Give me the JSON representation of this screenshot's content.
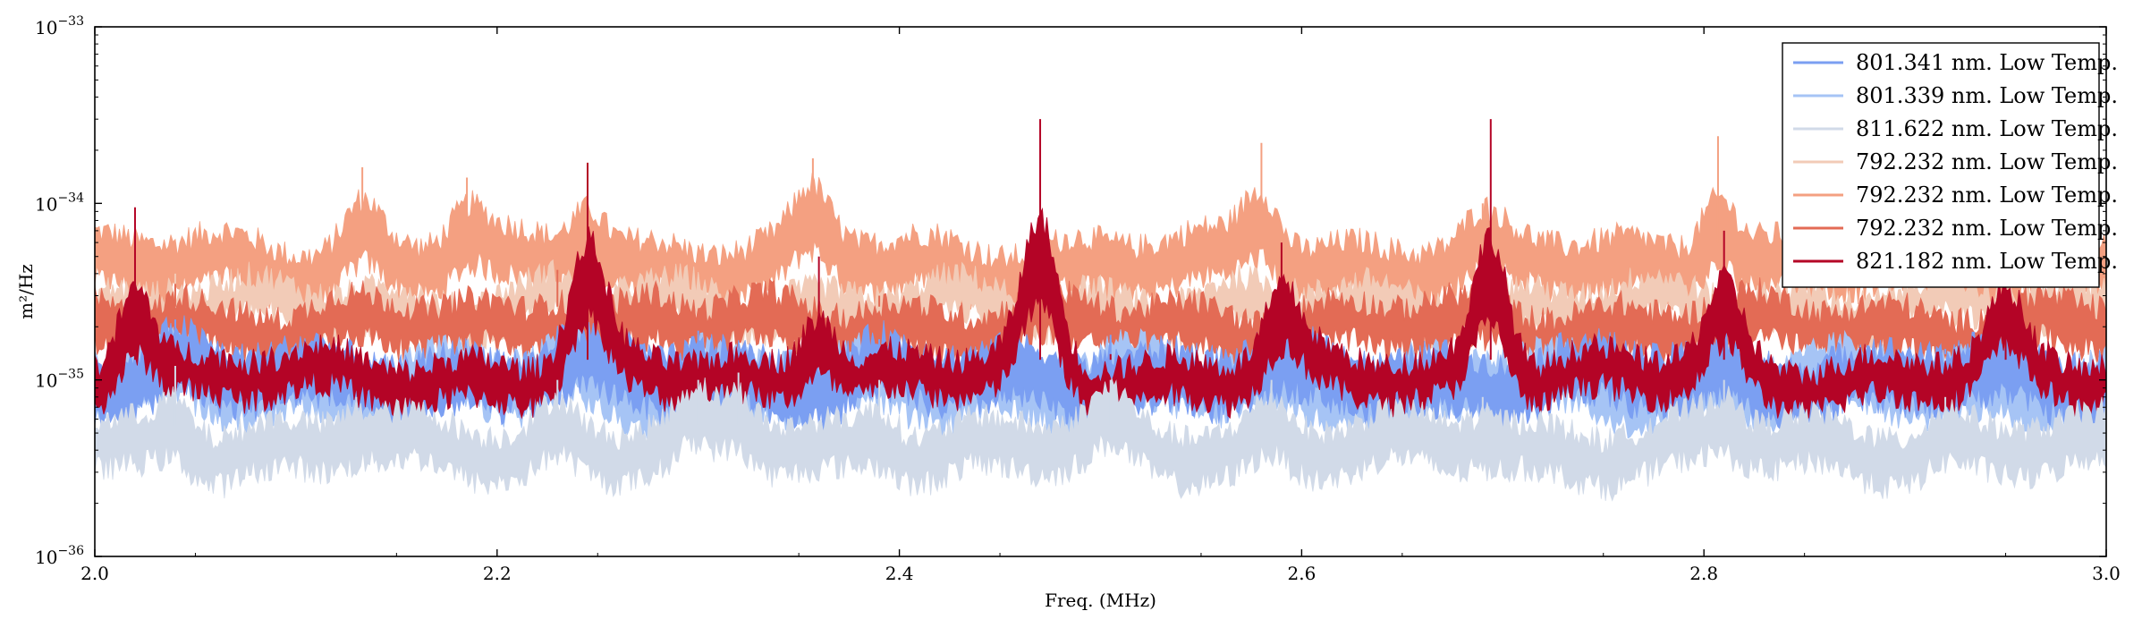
{
  "chart_data": {
    "type": "line",
    "title": "",
    "xlabel": "Freq. (MHz)",
    "ylabel": "m²/Hz",
    "xlim": [
      2.0,
      3.0
    ],
    "ylim": [
      1e-36,
      1e-33
    ],
    "yscale": "log",
    "x_ticks": [
      2.0,
      2.2,
      2.4,
      2.6,
      2.8,
      3.0
    ],
    "x_tick_labels": [
      "2.0",
      "2.2",
      "2.4",
      "2.6",
      "2.8",
      "3.0"
    ],
    "y_ticks": [
      1e-36,
      1e-35,
      1e-34,
      1e-33
    ],
    "y_tick_labels": [
      {
        "base": "10",
        "exp": "−36"
      },
      {
        "base": "10",
        "exp": "−35"
      },
      {
        "base": "10",
        "exp": "−34"
      },
      {
        "base": "10",
        "exp": "−33"
      }
    ],
    "grid": false,
    "legend_position": "top-right",
    "series": [
      {
        "name": "801.341 nm. Low Temp.",
        "color": "#7b9ff2",
        "band_low": 7e-36,
        "band_high": 1.4e-35,
        "peaks": [
          [
            2.04,
            2.2e-35
          ],
          [
            2.235,
            2e-35
          ],
          [
            2.3,
            1.9e-35
          ],
          [
            2.39,
            1.7e-35
          ],
          [
            2.505,
            1.8e-35
          ],
          [
            2.585,
            1.7e-35
          ],
          [
            2.81,
            1.6e-35
          ],
          [
            2.92,
            1.5e-35
          ]
        ]
      },
      {
        "name": "801.339 nm. Low Temp.",
        "color": "#a6c4f5",
        "band_low": 6.5e-36,
        "band_high": 1.3e-35,
        "peaks": [
          [
            2.04,
            2e-35
          ],
          [
            2.235,
            1.9e-35
          ],
          [
            2.3,
            1.8e-35
          ],
          [
            2.505,
            1.7e-35
          ]
        ]
      },
      {
        "name": "811.622 nm. Low Temp.",
        "color": "#d1dae8",
        "band_low": 3e-36,
        "band_high": 5.5e-36,
        "peaks": [
          [
            2.04,
            1.2e-35
          ],
          [
            2.13,
            8e-36
          ],
          [
            2.23,
            1e-35
          ],
          [
            2.3,
            1e-35
          ],
          [
            2.32,
            1.1e-35
          ],
          [
            2.39,
            1e-35
          ],
          [
            2.505,
            1e-35
          ],
          [
            2.585,
            1e-35
          ],
          [
            2.69,
            8e-36
          ],
          [
            2.81,
            1e-35
          ],
          [
            2.92,
            8e-36
          ]
        ]
      },
      {
        "name": "792.232 nm. Low Temp.",
        "color": "#f2cbb7",
        "band_low": 2e-35,
        "band_high": 3.2e-35,
        "peaks": [
          [
            2.04,
            4e-35
          ],
          [
            2.23,
            4e-35
          ],
          [
            2.3,
            3.6e-35
          ]
        ]
      },
      {
        "name": "792.232 nm. Low Temp.",
        "color": "#f4a081",
        "band_low": 3.2e-35,
        "band_high": 6e-35,
        "peaks": [
          [
            2.133,
            1.6e-34
          ],
          [
            2.185,
            1.4e-34
          ],
          [
            2.245,
            1.6e-34
          ],
          [
            2.357,
            1.8e-34
          ],
          [
            2.58,
            2.2e-34
          ],
          [
            2.69,
            1e-34
          ],
          [
            2.807,
            2.4e-34
          ],
          [
            2.98,
            1.1e-34
          ]
        ]
      },
      {
        "name": "792.232 nm. Low Temp.",
        "color": "#e36b55",
        "band_low": 1.5e-35,
        "band_high": 2.6e-35,
        "peaks": [
          [
            2.04,
            3.5e-35
          ],
          [
            2.23,
            4.2e-35
          ],
          [
            2.28,
            3.2e-35
          ],
          [
            2.39,
            3e-35
          ]
        ]
      },
      {
        "name": "821.182 nm. Low Temp.",
        "color": "#b40426",
        "band_low": 8e-36,
        "band_high": 1.3e-35,
        "peaks": [
          [
            2.02,
            9.5e-35
          ],
          [
            2.245,
            1.7e-34
          ],
          [
            2.36,
            5e-35
          ],
          [
            2.47,
            3e-34
          ],
          [
            2.505,
            1.4e-35
          ],
          [
            2.59,
            6e-35
          ],
          [
            2.694,
            3e-34
          ],
          [
            2.81,
            7e-35
          ],
          [
            2.95,
            5e-35
          ]
        ]
      }
    ]
  }
}
